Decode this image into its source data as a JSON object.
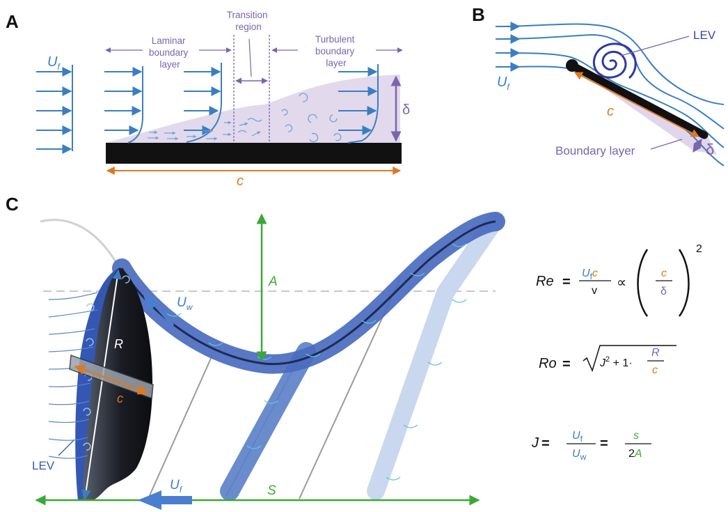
{
  "colors": {
    "blue": "#3a7ec2",
    "light_blue": "#6aa4d8",
    "purple": "#7a64ad",
    "purple_fill": "#ddd2ea",
    "orange": "#e0781f",
    "green": "#3aa935",
    "black": "#111111",
    "wing_blue": "#3b5fb0",
    "wing_light": "#c9d8ee"
  },
  "panels": {
    "a": {
      "letter": "A"
    },
    "b": {
      "letter": "B"
    },
    "c": {
      "letter": "C"
    }
  },
  "panel_a": {
    "laminar": [
      "Laminar",
      "boundary",
      "layer"
    ],
    "transition": [
      "Transition",
      "region"
    ],
    "turbulent": [
      "Turbulent",
      "boundary",
      "layer"
    ],
    "u_main": "U",
    "u_sub": "f",
    "delta": "δ",
    "chord": "c"
  },
  "panel_b": {
    "lev": "LEV",
    "u_main": "U",
    "u_sub": "f",
    "chord": "c",
    "boundary_layer": "Boundary layer",
    "delta": "δ"
  },
  "panel_c": {
    "amplitude": "A",
    "uw_main": "U",
    "uw_sub": "w",
    "radius": "R",
    "chord": "c",
    "lev": "LEV",
    "uf_main": "U",
    "uf_sub": "f",
    "stroke": "S"
  },
  "equations": {
    "re": {
      "lhs": "Re",
      "equals": "=",
      "num_u": "U",
      "num_sub": "f",
      "num_c": "c",
      "den": "v",
      "propto": "∝",
      "frac_num": "c",
      "frac_den": "δ",
      "exponent": "2"
    },
    "ro": {
      "lhs": "Ro",
      "equals": "=",
      "j": "J",
      "pow": "2",
      "rest": " + 1·",
      "num": "R",
      "den": "c"
    },
    "j": {
      "lhs": "J",
      "equals": "=",
      "num1_main": "U",
      "num1_sub": "f",
      "den1_main": "U",
      "den1_sub": "w",
      "equals2": "=",
      "num2": "s",
      "den2_num": "2",
      "den2_var": "A"
    }
  }
}
